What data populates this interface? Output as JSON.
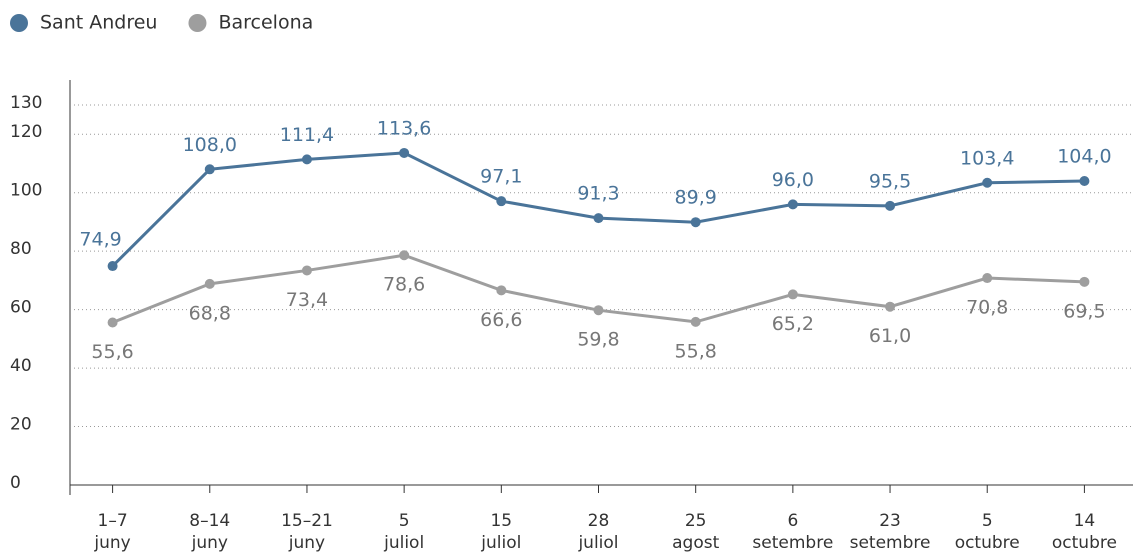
{
  "chart_data": {
    "type": "line",
    "categories": [
      [
        "1–7",
        "juny"
      ],
      [
        "8–14",
        "juny"
      ],
      [
        "15–21",
        "juny"
      ],
      [
        "5",
        "juliol"
      ],
      [
        "15",
        "juliol"
      ],
      [
        "28",
        "juliol"
      ],
      [
        "25",
        "agost"
      ],
      [
        "6",
        "setembre"
      ],
      [
        "23",
        "setembre"
      ],
      [
        "5",
        "octubre"
      ],
      [
        "14",
        "octubre"
      ]
    ],
    "series": [
      {
        "name": "Sant Andreu",
        "color": "#4a7499",
        "values": [
          74.9,
          108.0,
          111.4,
          113.6,
          97.1,
          91.3,
          89.9,
          96.0,
          95.5,
          103.4,
          104.0
        ],
        "value_labels": [
          "74,9",
          "108,0",
          "111,4",
          "113,6",
          "97,1",
          "91,3",
          "89,9",
          "96,0",
          "95,5",
          "103,4",
          "104,0"
        ]
      },
      {
        "name": "Barcelona",
        "color": "#9e9e9e",
        "values": [
          55.6,
          68.8,
          73.4,
          78.6,
          66.6,
          59.8,
          55.8,
          65.2,
          61.0,
          70.8,
          69.5
        ],
        "value_labels": [
          "55,6",
          "68,8",
          "73,4",
          "78,6",
          "66,6",
          "59,8",
          "55,8",
          "65,2",
          "61,0",
          "70,8",
          "69,5"
        ]
      }
    ],
    "ylim": [
      0,
      130
    ],
    "yticks": [
      0,
      20,
      40,
      60,
      80,
      100,
      120,
      130
    ],
    "grid": true,
    "legend": "top-left"
  }
}
